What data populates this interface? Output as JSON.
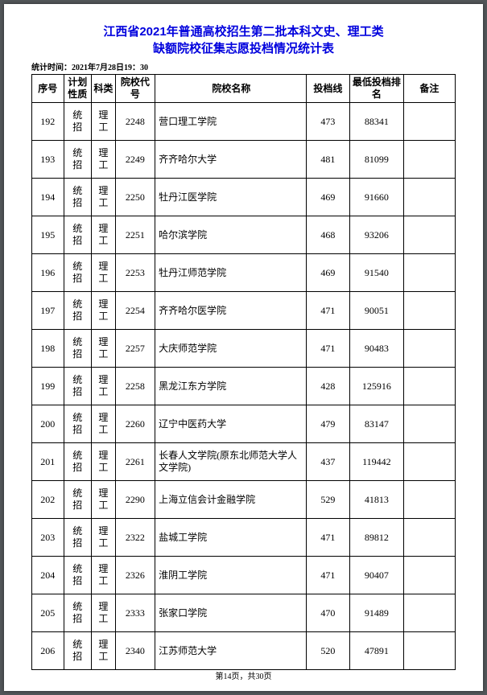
{
  "title_line1": "江西省2021年普通高校招生第二批本科文史、理工类",
  "title_line2": "缺额院校征集志愿投档情况统计表",
  "stat_time_label": "统计时间：",
  "stat_time_value": "2021年7月28日19：30",
  "columns": {
    "seq": "序号",
    "plan": "计划性质",
    "subj": "科类",
    "code": "院校代号",
    "name": "院校名称",
    "score": "投档线",
    "rank": "最低投档排名",
    "note": "备注"
  },
  "rows": [
    {
      "seq": "192",
      "plan": "统招",
      "subj": "理工",
      "code": "2248",
      "name": "营口理工学院",
      "score": "473",
      "rank": "88341",
      "note": ""
    },
    {
      "seq": "193",
      "plan": "统招",
      "subj": "理工",
      "code": "2249",
      "name": "齐齐哈尔大学",
      "score": "481",
      "rank": "81099",
      "note": ""
    },
    {
      "seq": "194",
      "plan": "统招",
      "subj": "理工",
      "code": "2250",
      "name": "牡丹江医学院",
      "score": "469",
      "rank": "91660",
      "note": ""
    },
    {
      "seq": "195",
      "plan": "统招",
      "subj": "理工",
      "code": "2251",
      "name": "哈尔滨学院",
      "score": "468",
      "rank": "93206",
      "note": ""
    },
    {
      "seq": "196",
      "plan": "统招",
      "subj": "理工",
      "code": "2253",
      "name": "牡丹江师范学院",
      "score": "469",
      "rank": "91540",
      "note": ""
    },
    {
      "seq": "197",
      "plan": "统招",
      "subj": "理工",
      "code": "2254",
      "name": "齐齐哈尔医学院",
      "score": "471",
      "rank": "90051",
      "note": ""
    },
    {
      "seq": "198",
      "plan": "统招",
      "subj": "理工",
      "code": "2257",
      "name": "大庆师范学院",
      "score": "471",
      "rank": "90483",
      "note": ""
    },
    {
      "seq": "199",
      "plan": "统招",
      "subj": "理工",
      "code": "2258",
      "name": "黑龙江东方学院",
      "score": "428",
      "rank": "125916",
      "note": ""
    },
    {
      "seq": "200",
      "plan": "统招",
      "subj": "理工",
      "code": "2260",
      "name": "辽宁中医药大学",
      "score": "479",
      "rank": "83147",
      "note": ""
    },
    {
      "seq": "201",
      "plan": "统招",
      "subj": "理工",
      "code": "2261",
      "name": "长春人文学院(原东北师范大学人文学院)",
      "score": "437",
      "rank": "119442",
      "note": ""
    },
    {
      "seq": "202",
      "plan": "统招",
      "subj": "理工",
      "code": "2290",
      "name": "上海立信会计金融学院",
      "score": "529",
      "rank": "41813",
      "note": ""
    },
    {
      "seq": "203",
      "plan": "统招",
      "subj": "理工",
      "code": "2322",
      "name": "盐城工学院",
      "score": "471",
      "rank": "89812",
      "note": ""
    },
    {
      "seq": "204",
      "plan": "统招",
      "subj": "理工",
      "code": "2326",
      "name": "淮阴工学院",
      "score": "471",
      "rank": "90407",
      "note": ""
    },
    {
      "seq": "205",
      "plan": "统招",
      "subj": "理工",
      "code": "2333",
      "name": "张家口学院",
      "score": "470",
      "rank": "91489",
      "note": ""
    },
    {
      "seq": "206",
      "plan": "统招",
      "subj": "理工",
      "code": "2340",
      "name": "江苏师范大学",
      "score": "520",
      "rank": "47891",
      "note": ""
    }
  ],
  "footer": "第14页，共30页"
}
